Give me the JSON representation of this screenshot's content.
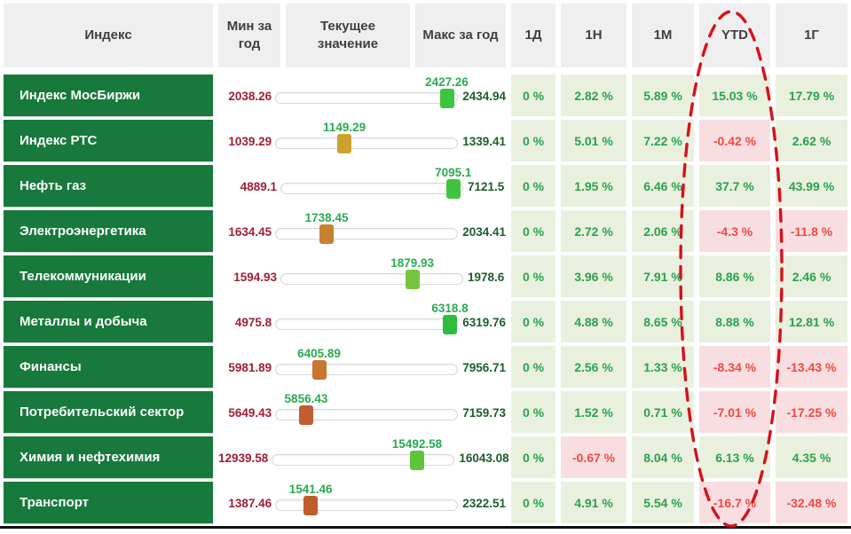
{
  "header": {
    "columns": [
      "Индекс",
      "Мин за год",
      "Текущее значение",
      "Макс за год",
      "1Д",
      "1Н",
      "1М",
      "YTD",
      "1Г"
    ]
  },
  "rows": [
    {
      "label": "Индекс МосБиржи",
      "min": "2038.26",
      "current": "2427.26",
      "max": "2434.94",
      "handle_color": "#3fc43f",
      "pct": [
        "0 %",
        "2.82 %",
        "5.89 %",
        "15.03 %",
        "17.79 %"
      ]
    },
    {
      "label": "Индекс РТС",
      "min": "1039.29",
      "current": "1149.29",
      "max": "1339.41",
      "handle_color": "#cba22d",
      "pct": [
        "0 %",
        "5.01 %",
        "7.22 %",
        "-0.42 %",
        "2.62 %"
      ]
    },
    {
      "label": "Нефть газ",
      "min": "4889.1",
      "current": "7095.1",
      "max": "7121.5",
      "handle_color": "#3fc43f",
      "pct": [
        "0 %",
        "1.95 %",
        "6.46 %",
        "37.7 %",
        "43.99 %"
      ]
    },
    {
      "label": "Электроэнергетика",
      "min": "1634.45",
      "current": "1738.45",
      "max": "2034.41",
      "handle_color": "#c8822f",
      "pct": [
        "0 %",
        "2.72 %",
        "2.06 %",
        "-4.3 %",
        "-11.8 %"
      ]
    },
    {
      "label": "Телекоммуникации",
      "min": "1594.93",
      "current": "1879.93",
      "max": "1978.6",
      "handle_color": "#76c53c",
      "pct": [
        "0 %",
        "3.96 %",
        "7.91 %",
        "8.86 %",
        "2.46 %"
      ]
    },
    {
      "label": "Металлы и добыча",
      "min": "4975.8",
      "current": "6318.8",
      "max": "6319.76",
      "handle_color": "#2ebc3e",
      "pct": [
        "0 %",
        "4.88 %",
        "8.65 %",
        "8.88 %",
        "12.81 %"
      ]
    },
    {
      "label": "Финансы",
      "min": "5981.89",
      "current": "6405.89",
      "max": "7956.71",
      "handle_color": "#c7752f",
      "pct": [
        "0 %",
        "2.56 %",
        "1.33 %",
        "-8.34 %",
        "-13.43 %"
      ]
    },
    {
      "label": "Потребительский сектор",
      "min": "5649.43",
      "current": "5856.43",
      "max": "7159.73",
      "handle_color": "#c25c31",
      "pct": [
        "0 %",
        "1.52 %",
        "0.71 %",
        "-7.01 %",
        "-17.25 %"
      ]
    },
    {
      "label": "Химия и нефтехимия",
      "min": "12939.58",
      "current": "15492.58",
      "max": "16043.08",
      "handle_color": "#5ec43c",
      "pct": [
        "0 %",
        "-0.67 %",
        "8.04 %",
        "6.13 %",
        "4.35 %"
      ]
    },
    {
      "label": "Транспорт",
      "min": "1387.46",
      "current": "1541.46",
      "max": "2322.51",
      "handle_color": "#c05b2b",
      "pct": [
        "0 %",
        "4.91 %",
        "5.54 %",
        "-16.7 %",
        "-32.48 %"
      ]
    }
  ],
  "colors": {
    "header_bg": "#efefef",
    "header_text": "#3f3f3f",
    "label_bg": "#17793c",
    "positive_bg": "#e9f1de",
    "positive_text": "#2ba14f",
    "negative_bg": "#f8dee1",
    "negative_text": "#f24842",
    "min_text": "#9f1f35",
    "current_text": "#2aab50",
    "max_text": "#1b5e2d"
  },
  "annotation": {
    "shape": "dashed-ellipse",
    "highlighted_column": "YTD",
    "color": "#d8101c"
  }
}
